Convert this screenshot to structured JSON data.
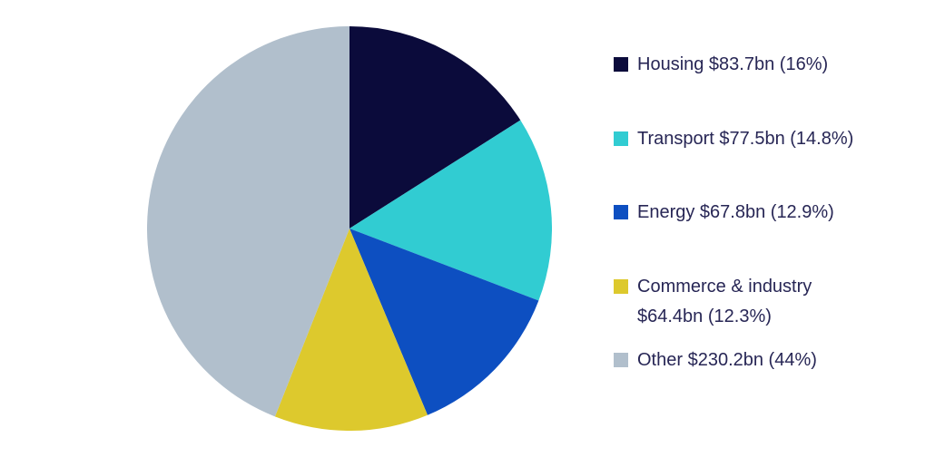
{
  "chart_data": {
    "type": "pie",
    "title": "",
    "currency": "$",
    "unit": "bn",
    "start_angle_deg": 0,
    "direction": "clockwise",
    "legend_position": "right",
    "grid": false,
    "background_color": "#ffffff",
    "text_color": "#272655",
    "total_percent": 100,
    "slices": [
      {
        "id": "housing",
        "label": "Housing",
        "value_bn": 83.7,
        "percent": 16,
        "color": "#0b0b3b",
        "legend_lines": [
          "Housing $83.7bn (16%)"
        ]
      },
      {
        "id": "transport",
        "label": "Transport",
        "value_bn": 77.5,
        "percent": 14.8,
        "color": "#31ccd2",
        "legend_lines": [
          "Transport $77.5bn (14.8%)"
        ]
      },
      {
        "id": "energy",
        "label": "Energy",
        "value_bn": 67.8,
        "percent": 12.9,
        "color": "#0d4fc1",
        "legend_lines": [
          "Energy $67.8bn (12.9%)"
        ]
      },
      {
        "id": "commerce-industry",
        "label": "Commerce & industry",
        "value_bn": 64.4,
        "percent": 12.3,
        "color": "#ddc92d",
        "legend_lines": [
          "Commerce & industry",
          "$64.4bn (12.3%)"
        ]
      },
      {
        "id": "other",
        "label": "Other",
        "value_bn": 230.2,
        "percent": 44,
        "color": "#b1bfcc",
        "legend_lines": [
          "Other $230.2bn (44%)"
        ]
      }
    ]
  }
}
